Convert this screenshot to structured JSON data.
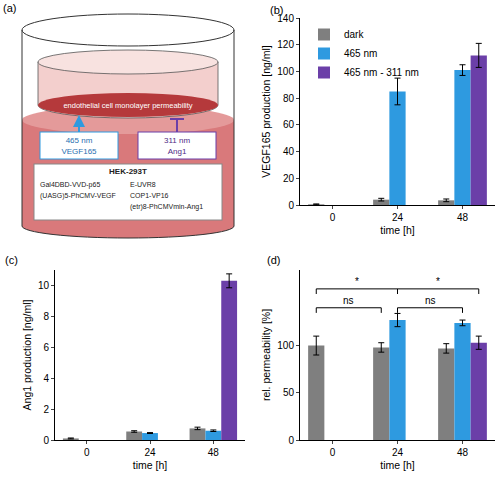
{
  "diagram": {
    "label": "(a)",
    "monolayer": "endothelial cell monolayer permeability",
    "activation": {
      "wavelength": "465 nm",
      "product": "VEGF165"
    },
    "repression": {
      "wavelength": "311 nm",
      "product": "Ang1"
    },
    "cell_line": "HEK-293T",
    "constructs_left": [
      "Gal4DBD-VVD-p65",
      "(UASG)5-PhCMV-VEGF"
    ],
    "constructs_right": [
      "E-UVR8",
      "COP1-VP16",
      "(etr)8-PhCMVmin-Ang1"
    ]
  },
  "chart_data": [
    {
      "type": "bar",
      "title": "(b)",
      "x_label": "time [h]",
      "y_label": "VEGF165 production [ng/ml]",
      "categories": [
        "0",
        "24",
        "48"
      ],
      "series": [
        {
          "name": "dark",
          "color": "#7f7f7f",
          "values": [
            0.5,
            4,
            3.5
          ],
          "errors": [
            0.3,
            1,
            1
          ]
        },
        {
          "name": "465 nm",
          "color": "#2e9ae0",
          "values": [
            null,
            85,
            101
          ],
          "errors": [
            null,
            10,
            4
          ]
        },
        {
          "name": "465 nm - 311 nm",
          "color": "#6b3fa8",
          "values": [
            null,
            null,
            112
          ],
          "errors": [
            null,
            null,
            9
          ]
        }
      ],
      "ylim": [
        0,
        140
      ],
      "yticks": [
        0,
        20,
        40,
        60,
        80,
        100,
        120,
        140
      ],
      "grid": false,
      "legend": "top left"
    },
    {
      "type": "bar",
      "title": "(c)",
      "x_label": "time [h]",
      "y_label": "Ang1 production [ng/ml]",
      "categories": [
        "0",
        "24",
        "48"
      ],
      "series": [
        {
          "name": "dark",
          "color": "#7f7f7f",
          "values": [
            0.1,
            0.55,
            0.75
          ],
          "errors": [
            0.03,
            0.05,
            0.08
          ]
        },
        {
          "name": "465 nm",
          "color": "#2e9ae0",
          "values": [
            null,
            0.45,
            0.6
          ],
          "errors": [
            null,
            0.03,
            0.05
          ]
        },
        {
          "name": "465 nm - 311 nm",
          "color": "#6b3fa8",
          "values": [
            null,
            null,
            10.3
          ],
          "errors": [
            null,
            null,
            0.45
          ]
        }
      ],
      "ylim": [
        0,
        11
      ],
      "yticks": [
        0,
        2,
        4,
        6,
        8,
        10
      ],
      "grid": false
    },
    {
      "type": "bar",
      "title": "(d)",
      "x_label": "time [h]",
      "y_label": "rel. permeability [%]",
      "categories": [
        "0",
        "24",
        "48"
      ],
      "series": [
        {
          "name": "dark",
          "color": "#7f7f7f",
          "values": [
            100,
            98,
            97
          ],
          "errors": [
            10,
            5,
            5
          ]
        },
        {
          "name": "465 nm",
          "color": "#2e9ae0",
          "values": [
            null,
            127,
            124
          ],
          "errors": [
            null,
            7,
            3
          ]
        },
        {
          "name": "465 nm - 311 nm",
          "color": "#6b3fa8",
          "values": [
            null,
            null,
            103
          ],
          "errors": [
            null,
            null,
            7
          ]
        }
      ],
      "comparisons": [
        {
          "from": {
            "category": "0",
            "series": "dark"
          },
          "to": {
            "category": "24",
            "series": "465 nm"
          },
          "label": "*",
          "y": 160
        },
        {
          "from": {
            "category": "24",
            "series": "465 nm"
          },
          "to": {
            "category": "48",
            "series": "465 nm - 311 nm"
          },
          "label": "*",
          "y": 160
        },
        {
          "from": {
            "category": "0",
            "series": "dark"
          },
          "to": {
            "category": "24",
            "series": "dark"
          },
          "label": "ns",
          "y": 140
        },
        {
          "from": {
            "category": "24",
            "series": "465 nm"
          },
          "to": {
            "category": "48",
            "series": "465 nm"
          },
          "label": "ns",
          "y": 140
        }
      ],
      "ylim": [
        0,
        180
      ],
      "yticks": [
        0,
        50,
        100
      ],
      "grid": false
    }
  ]
}
